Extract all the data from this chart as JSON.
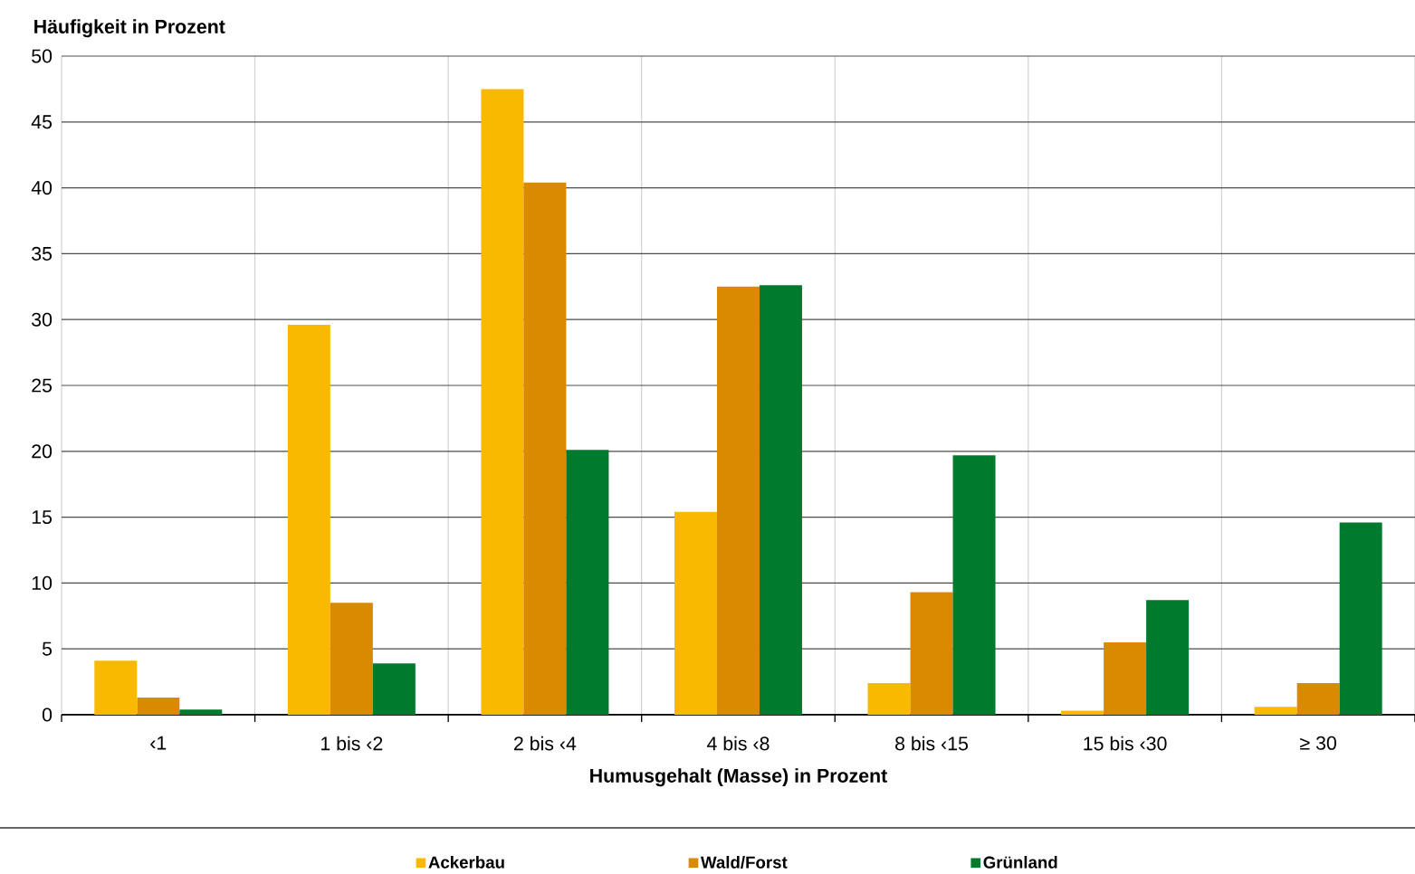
{
  "chart_data": {
    "type": "bar",
    "ylabel": "Häufigkeit in Prozent",
    "xlabel": "Humusgehalt (Masse) in Prozent",
    "categories": [
      "‹1",
      "1 bis ‹2",
      "2 bis ‹4",
      "4 bis ‹8",
      "8 bis ‹15",
      "15 bis ‹30",
      "≥ 30"
    ],
    "series": [
      {
        "name": "Ackerbau",
        "color": "#f9b900",
        "values": [
          4.1,
          29.6,
          47.5,
          15.4,
          2.4,
          0.3,
          0.6
        ]
      },
      {
        "name": "Wald/Forst",
        "color": "#d98a00",
        "values": [
          1.3,
          8.5,
          40.4,
          32.5,
          9.3,
          5.5,
          2.4
        ]
      },
      {
        "name": "Grünland",
        "color": "#007a2d",
        "values": [
          0.4,
          3.9,
          20.1,
          32.6,
          19.7,
          8.7,
          14.6
        ]
      }
    ],
    "ylim": [
      0,
      50
    ],
    "yticks": [
      0,
      5,
      10,
      15,
      20,
      25,
      30,
      35,
      40,
      45,
      50
    ],
    "grid": true,
    "legend": "bottom"
  }
}
